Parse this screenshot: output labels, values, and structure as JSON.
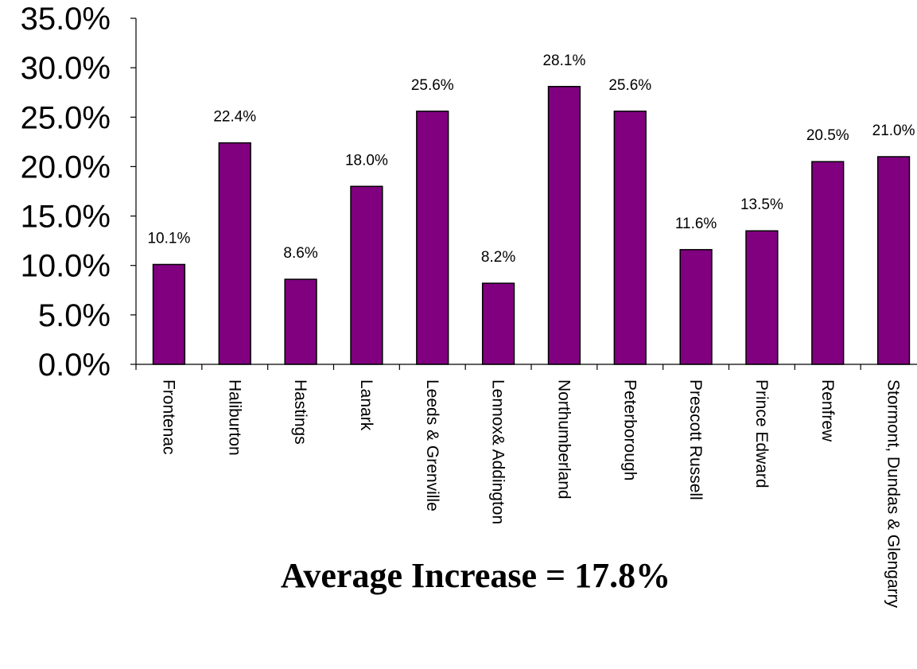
{
  "chart_data": {
    "type": "bar",
    "categories": [
      "Frontenac",
      "Haliburton",
      "Hastings",
      "Lanark",
      "Leeds  & Grenville",
      "Lennox& Addington",
      "Northumberland",
      "Peterborough",
      "Prescott Russell",
      "Prince Edward",
      "Renfrew",
      "Stormont, Dundas & Glengarry"
    ],
    "values": [
      10.1,
      22.4,
      8.6,
      18.0,
      25.6,
      8.2,
      28.1,
      25.6,
      11.6,
      13.5,
      20.5,
      21.0
    ],
    "data_labels": [
      "10.1%",
      "22.4%",
      "8.6%",
      "18.0%",
      "25.6%",
      "8.2%",
      "28.1%",
      "25.6%",
      "11.6%",
      "13.5%",
      "20.5%",
      "21.0%"
    ],
    "yticks": [
      "0.0%",
      "5.0%",
      "10.0%",
      "15.0%",
      "20.0%",
      "25.0%",
      "30.0%",
      "35.0%"
    ],
    "ylim": [
      0,
      35
    ],
    "bar_color": "#800080",
    "grid": false,
    "annotation": "Average Increase = 17.8%"
  }
}
